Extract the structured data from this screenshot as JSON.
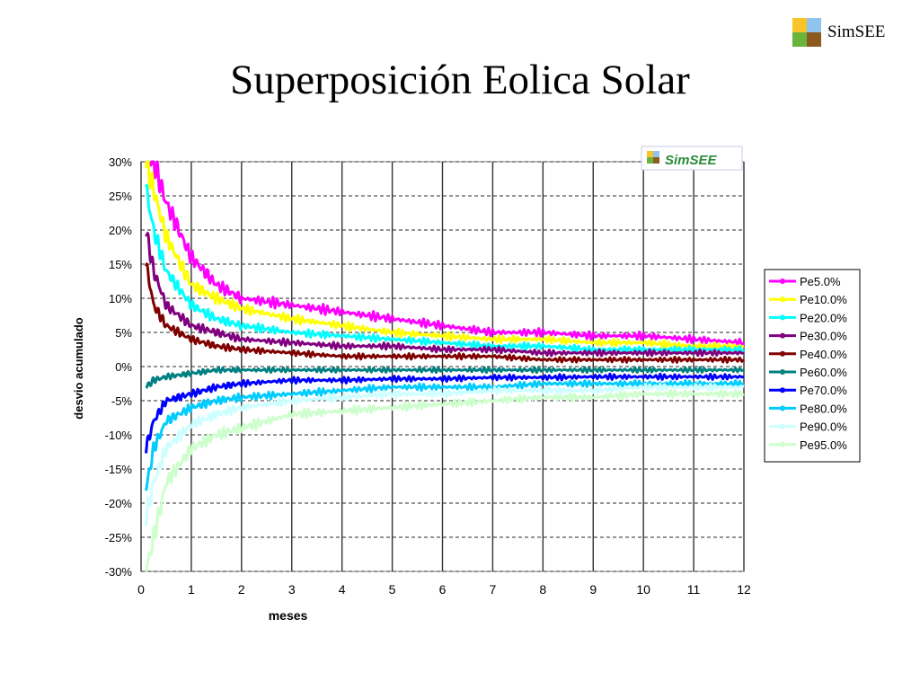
{
  "slide": {
    "title": "Superposición Eolica Solar",
    "brand_text": "SimSEE",
    "brand_colors": [
      "#f7c42a",
      "#8fc4ee",
      "#6ab43c",
      "#8b5a1e"
    ]
  },
  "chart_data": {
    "type": "line",
    "title": "",
    "xlabel": "meses",
    "ylabel": "desvio acumulado",
    "xlim": [
      0,
      12
    ],
    "ylim": [
      -30,
      30
    ],
    "x_ticks": [
      "0",
      "1",
      "2",
      "3",
      "4",
      "5",
      "6",
      "7",
      "8",
      "9",
      "10",
      "11",
      "12"
    ],
    "y_ticks": [
      "30%",
      "25%",
      "20%",
      "15%",
      "10%",
      "5%",
      "0%",
      "-5%",
      "-10%",
      "-15%",
      "-20%",
      "-25%",
      "-30%"
    ],
    "grid": "vertical solid, horizontal dashed",
    "legend_position": "right",
    "watermark": "SimSEE",
    "x": [
      0.1,
      0.25,
      0.5,
      1,
      1.5,
      2,
      3,
      4,
      5,
      6,
      7,
      8,
      9,
      10,
      11,
      12
    ],
    "series": [
      {
        "name": "Pe5.0%",
        "color": "#ff00ff",
        "values": [
          30,
          30,
          24,
          16,
          12,
          10,
          9,
          8,
          7,
          6,
          5,
          5,
          4.5,
          4.5,
          4,
          3.5
        ]
      },
      {
        "name": "Pe10.0%",
        "color": "#ffff00",
        "values": [
          30,
          26,
          19,
          12,
          10,
          8.5,
          7,
          6,
          5,
          4.5,
          4,
          4,
          3.5,
          3.5,
          3,
          3
        ]
      },
      {
        "name": "Pe20.0%",
        "color": "#00ffff",
        "values": [
          26,
          20,
          14,
          9,
          7,
          6,
          5,
          4.5,
          4,
          3.5,
          3,
          3,
          2.5,
          2.5,
          2.5,
          2.5
        ]
      },
      {
        "name": "Pe30.0%",
        "color": "#800080",
        "values": [
          20,
          14,
          9,
          6,
          5,
          4,
          3.5,
          3,
          3,
          2.5,
          2.5,
          2,
          2,
          2,
          2,
          2
        ]
      },
      {
        "name": "Pe40.0%",
        "color": "#800000",
        "values": [
          15,
          9,
          6,
          4,
          3,
          2.5,
          2,
          1.5,
          1.5,
          1.5,
          1.5,
          1,
          1,
          1,
          1,
          1
        ]
      },
      {
        "name": "Pe60.0%",
        "color": "#008080",
        "values": [
          -3,
          -2,
          -1.5,
          -1,
          -0.5,
          -0.5,
          -0.5,
          -0.5,
          -0.5,
          -0.5,
          -0.5,
          -0.5,
          -0.5,
          -0.5,
          -0.5,
          -0.5
        ]
      },
      {
        "name": "Pe70.0%",
        "color": "#0000ff",
        "values": [
          -12,
          -8,
          -5,
          -4,
          -3,
          -2.5,
          -2,
          -2,
          -1.8,
          -1.8,
          -1.6,
          -1.6,
          -1.5,
          -1.5,
          -1.5,
          -1.5
        ]
      },
      {
        "name": "Pe80.0%",
        "color": "#00ccff",
        "values": [
          -18,
          -12,
          -8,
          -6,
          -5,
          -4.5,
          -4,
          -3.5,
          -3,
          -3,
          -3,
          -2.5,
          -2.5,
          -2.5,
          -2.5,
          -2.5
        ]
      },
      {
        "name": "Pe90.0%",
        "color": "#ccffff",
        "values": [
          -22,
          -17,
          -12,
          -8.5,
          -7,
          -6,
          -5,
          -4.5,
          -4,
          -4,
          -3.5,
          -3.5,
          -3.5,
          -3,
          -3,
          -3
        ]
      },
      {
        "name": "Pe95.0%",
        "color": "#ccffcc",
        "values": [
          -30,
          -25,
          -17,
          -12,
          -10,
          -9,
          -7,
          -6.5,
          -6,
          -5.5,
          -5,
          -4.5,
          -4.5,
          -4,
          -4,
          -4
        ]
      }
    ]
  }
}
